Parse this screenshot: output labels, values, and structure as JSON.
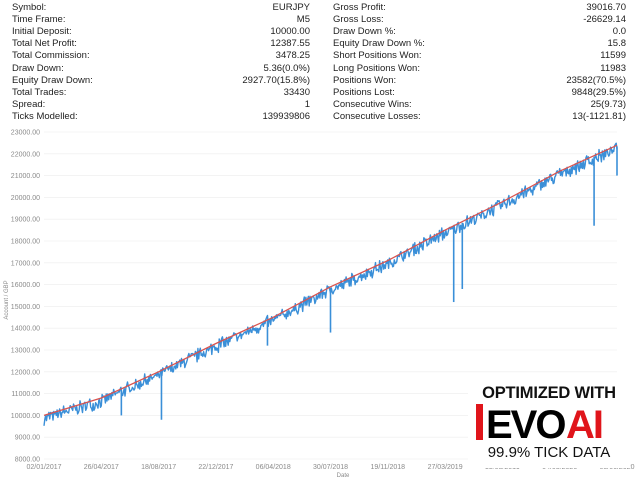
{
  "report": {
    "left_stats": [
      {
        "label": "Symbol:",
        "value": "EURJPY"
      },
      {
        "label": "Time Frame:",
        "value": "M5"
      },
      {
        "label": "Initial Deposit:",
        "value": "10000.00"
      },
      {
        "label": "Total Net Profit:",
        "value": "12387.55"
      },
      {
        "label": "Total Commission:",
        "value": "3478.25"
      },
      {
        "label": "Draw Down:",
        "value": "5.36(0.0%)"
      },
      {
        "label": "Equity Draw Down:",
        "value": "2927.70(15.8%)"
      },
      {
        "label": "Total Trades:",
        "value": "33430"
      },
      {
        "label": "Spread:",
        "value": "1"
      },
      {
        "label": "Ticks Modelled:",
        "value": "139939806"
      }
    ],
    "right_stats": [
      {
        "label": "Gross Profit:",
        "value": "39016.70"
      },
      {
        "label": "Gross Loss:",
        "value": "-26629.14"
      },
      {
        "label": "Draw Down %:",
        "value": "0.0"
      },
      {
        "label": "Equity Draw Down %:",
        "value": "15.8"
      },
      {
        "label": "Short Positions Won:",
        "value": "11599"
      },
      {
        "label": "Long Positions Won:",
        "value": "11983"
      },
      {
        "label": "Positions Won:",
        "value": "23582(70.5%)"
      },
      {
        "label": "Positions Lost:",
        "value": "9848(29.5%)"
      },
      {
        "label": "Consecutive Wins:",
        "value": "25(9.73)"
      },
      {
        "label": "Consecutive Losses:",
        "value": "13(-1121.81)"
      }
    ]
  },
  "badge": {
    "line1": "OPTIMIZED WITH",
    "logo_part1": "EVO",
    "logo_part2": "AI",
    "line3": "99.9% TICK DATA"
  },
  "colors": {
    "equity": "#3a8fd8",
    "balance": "#d9534f",
    "axis_text": "#8a8a8a",
    "badge_accent": "#e0151b"
  },
  "chart_data": {
    "type": "line",
    "xlabel": "Date",
    "ylabel": "Account / GBP",
    "ylim": [
      8000,
      23000
    ],
    "y_ticks": [
      "8000.00",
      "9000.00",
      "10000.00",
      "11000.00",
      "12000.00",
      "13000.00",
      "14000.00",
      "15000.00",
      "16000.00",
      "17000.00",
      "18000.00",
      "19000.00",
      "20000.00",
      "21000.00",
      "22000.00",
      "23000.00"
    ],
    "x_ticks": [
      "02/01/2017",
      "26/04/2017",
      "18/08/2017",
      "22/12/2017",
      "06/04/2018",
      "30/07/2018",
      "19/11/2018",
      "27/03/2019",
      "19/08/2019",
      "04/03/2020",
      "05/06/2020"
    ],
    "grid": true,
    "series": [
      {
        "name": "",
        "role": "balance",
        "x": [
          "02/01/2017",
          "26/04/2017",
          "18/08/2017",
          "22/12/2017",
          "06/04/2018",
          "30/07/2018",
          "19/11/2018",
          "27/03/2019",
          "19/08/2019",
          "04/03/2020",
          "05/06/2020"
        ],
        "values": [
          10000,
          10800,
          12000,
          13300,
          14500,
          15900,
          17100,
          18500,
          19800,
          21200,
          22390
        ]
      },
      {
        "name": "",
        "role": "equity",
        "x": [
          "02/01/2017",
          "26/04/2017",
          "18/08/2017",
          "22/12/2017",
          "06/04/2018",
          "30/07/2018",
          "19/11/2018",
          "27/03/2019",
          "19/08/2019",
          "04/03/2020",
          "05/06/2020"
        ],
        "values": [
          9950,
          10750,
          11950,
          13250,
          14450,
          15850,
          17050,
          18450,
          19750,
          21150,
          22340
        ],
        "drawdown_spikes": [
          {
            "x": "26/04/2017",
            "value": 10000
          },
          {
            "x": "18/08/2017",
            "value": 9800
          },
          {
            "x": "06/04/2018",
            "value": 13200
          },
          {
            "x": "30/07/2018",
            "value": 13800
          },
          {
            "x": "27/03/2019",
            "value": 15200
          },
          {
            "x": "27/03/2019",
            "value": 15800
          },
          {
            "x": "04/03/2020",
            "value": 18700
          },
          {
            "x": "05/06/2020",
            "value": 21000
          }
        ]
      }
    ]
  }
}
